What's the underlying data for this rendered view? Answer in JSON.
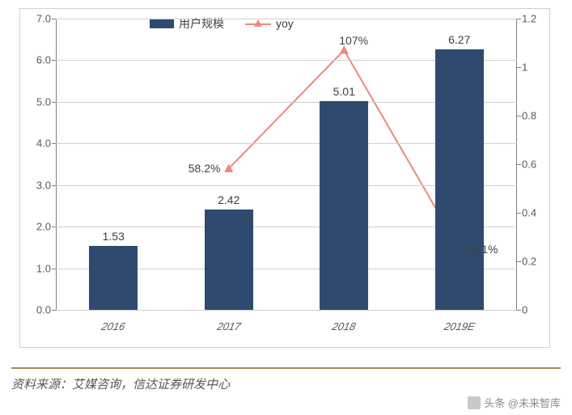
{
  "chart": {
    "type": "bar+line",
    "categories": [
      "2016",
      "2017",
      "2018",
      "2019E"
    ],
    "bars": {
      "series_name": "用户规模",
      "values": [
        1.53,
        2.42,
        5.01,
        6.27
      ],
      "color": "#2f4a6f",
      "bar_width_frac": 0.42,
      "label_fontsize": 14
    },
    "line": {
      "series_name": "yoy",
      "values": [
        null,
        0.582,
        1.07,
        0.251
      ],
      "display_labels": [
        "",
        "58.2%",
        "107%",
        "25.1%"
      ],
      "color": "#e98a7d",
      "line_width": 2,
      "marker": "triangle",
      "marker_size": 10
    },
    "y_left": {
      "min": 0.0,
      "max": 7.0,
      "tick_step": 1.0,
      "decimals": 1
    },
    "y_right": {
      "min": 0.0,
      "max": 1.2,
      "tick_step": 0.2,
      "decimals": 1
    },
    "legend": {
      "position": "top-center"
    },
    "grid_color": "#cfcfcf",
    "axis_color": "#808080",
    "background_color": "#ffffff",
    "tick_fontsize": 13,
    "tick_color": "#595959",
    "x_label_italic": true
  },
  "source": {
    "label": "资料来源：艾媒咨询，信达证券研发中心",
    "rule_color": "#a38b5a"
  },
  "attribution": {
    "text": "头条 @未来智库"
  }
}
